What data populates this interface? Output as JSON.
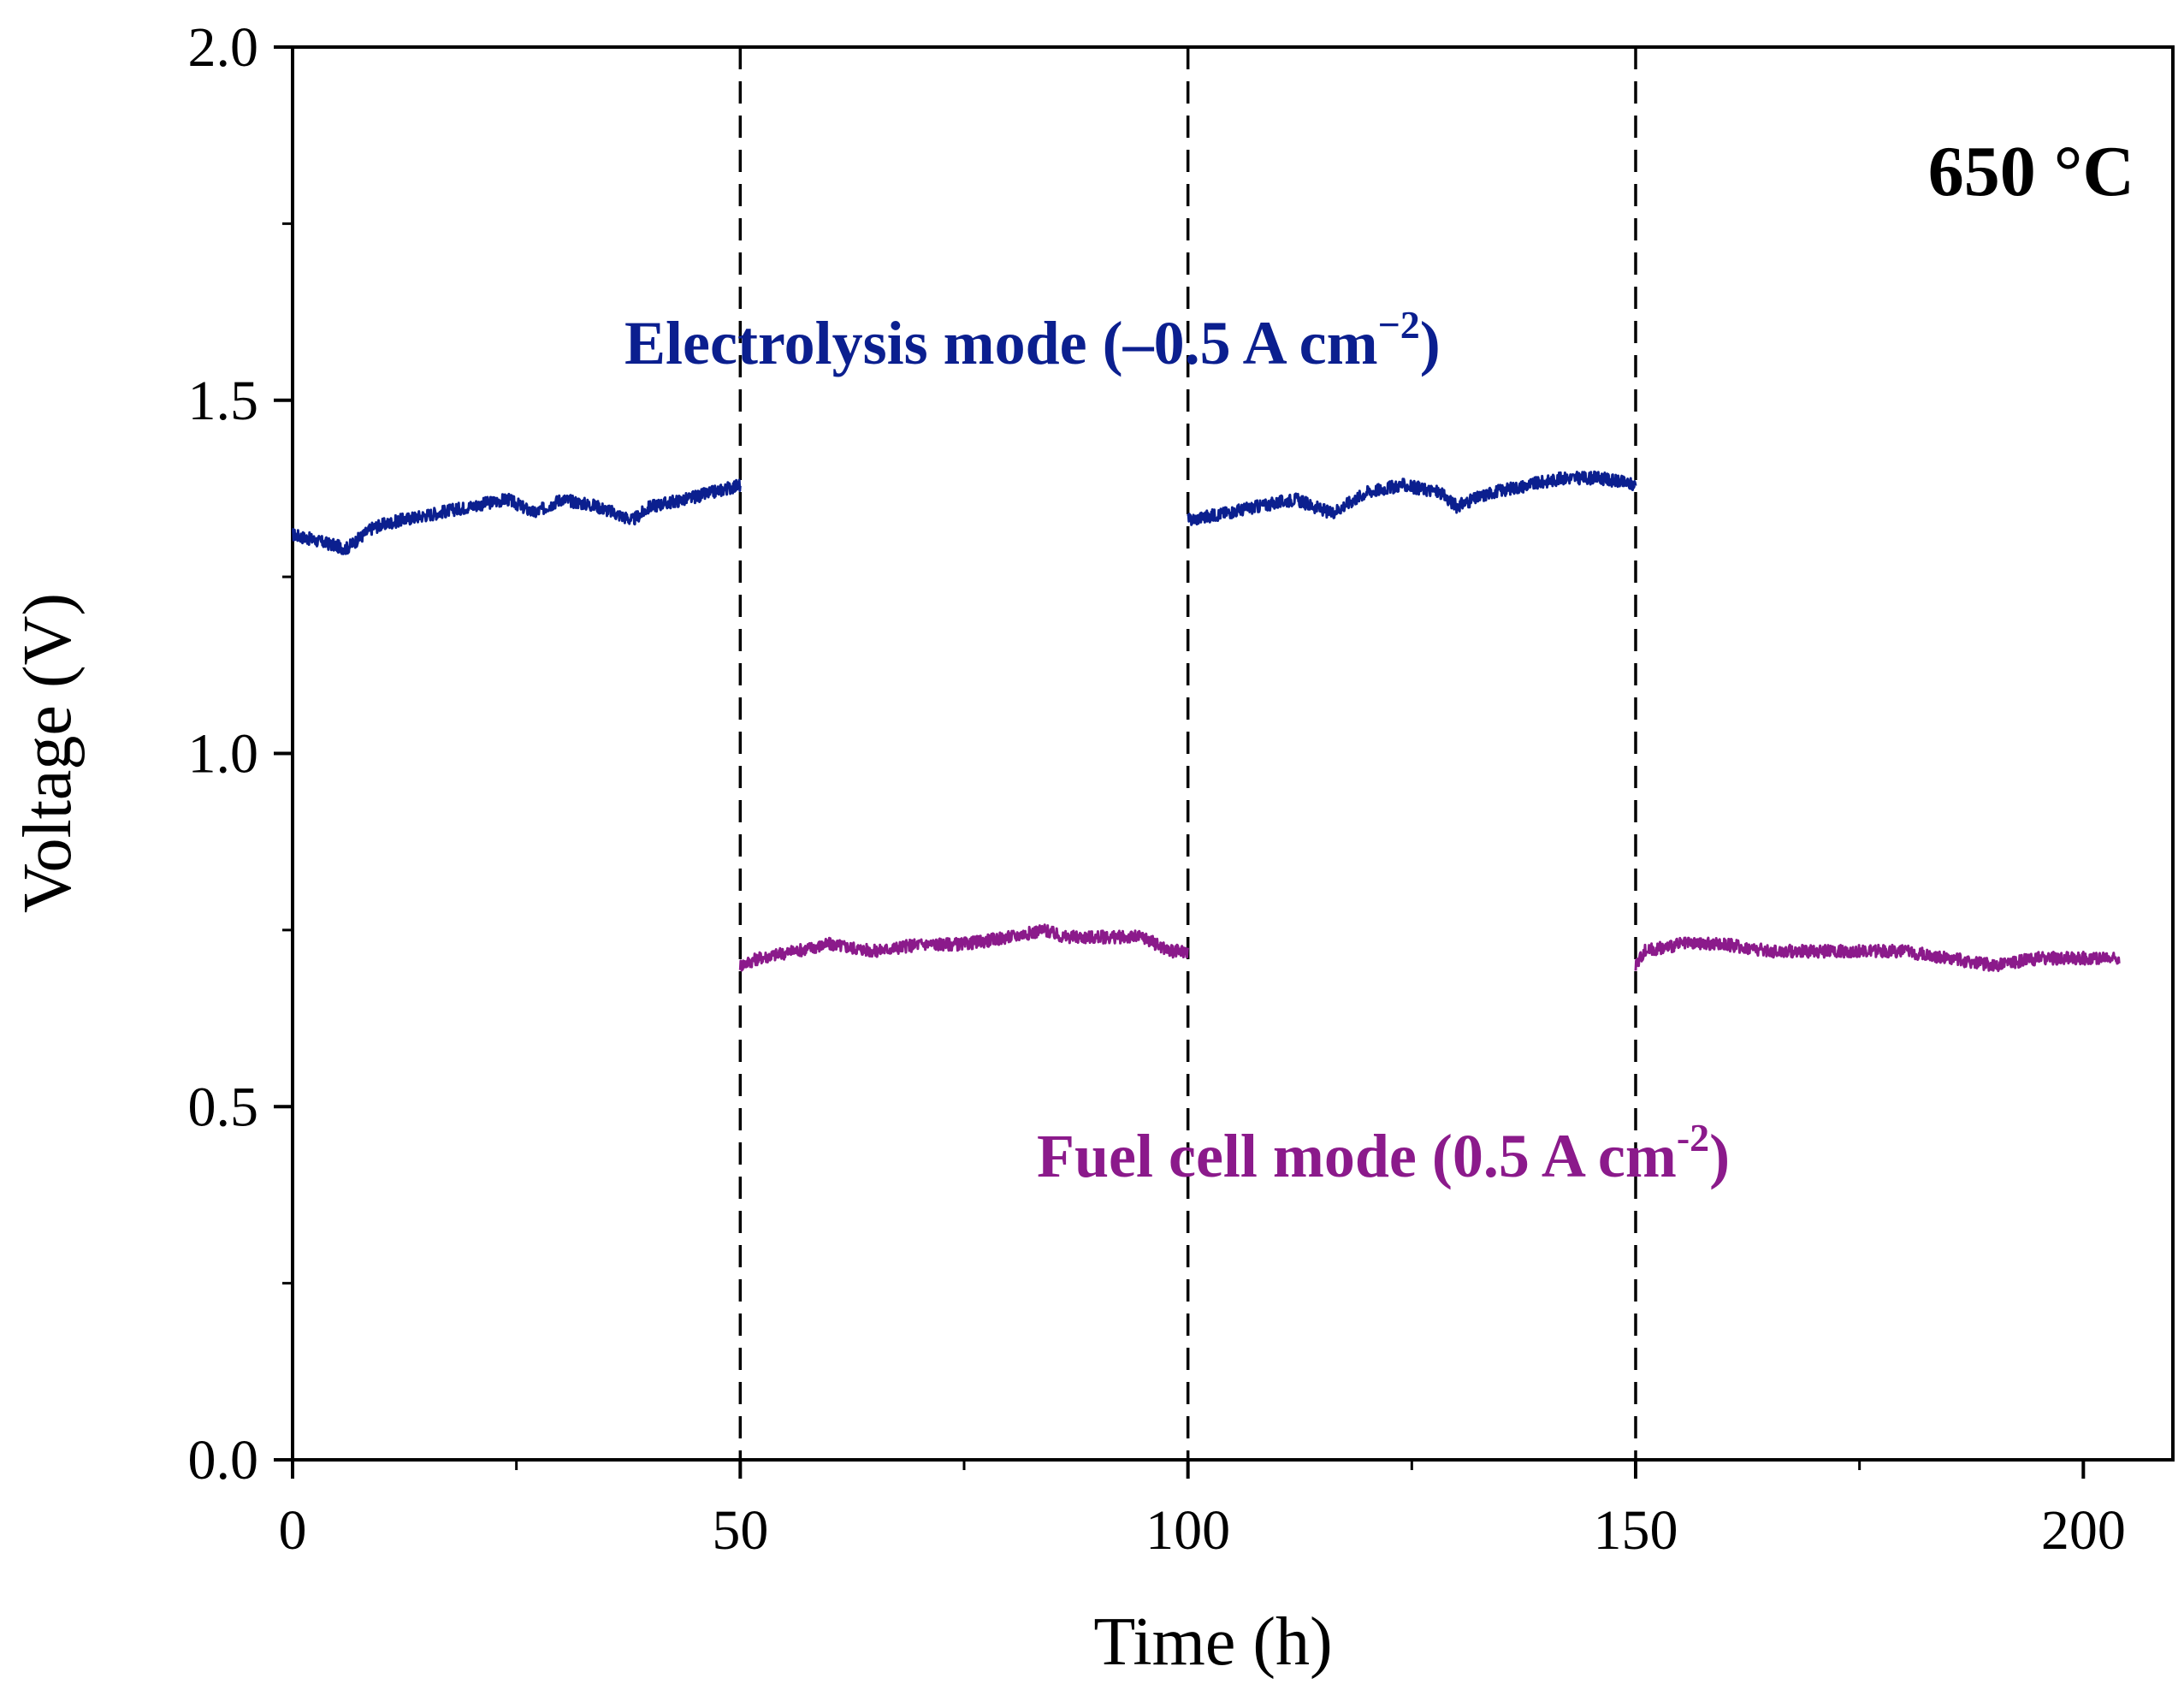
{
  "chart_data": {
    "type": "line",
    "title": "",
    "xlabel": "Time (h)",
    "ylabel": "Voltage (V)",
    "xlim": [
      0,
      210
    ],
    "ylim": [
      0.0,
      2.0
    ],
    "xticks": [
      0,
      50,
      100,
      150,
      200
    ],
    "xtick_labels": [
      "0",
      "50",
      "100",
      "150",
      "200"
    ],
    "yticks": [
      0.0,
      0.5,
      1.0,
      1.5,
      2.0
    ],
    "ytick_labels": [
      "0.0",
      "0.5",
      "1.0",
      "1.5",
      "2.0"
    ],
    "grid": false,
    "mode_switch_times": [
      50,
      100,
      150
    ],
    "series": [
      {
        "name": "Electrolysis mode (-0.5 A cm-2)",
        "color": "#0b1f8f",
        "segments": [
          {
            "x": [
              0,
              3,
              6,
              9,
              12,
              16,
              20,
              24,
              27,
              30,
              34,
              38,
              40,
              44,
              47,
              50
            ],
            "y": [
              1.31,
              1.3,
              1.29,
              1.32,
              1.33,
              1.34,
              1.35,
              1.36,
              1.34,
              1.36,
              1.35,
              1.33,
              1.35,
              1.36,
              1.37,
              1.38
            ]
          },
          {
            "x": [
              100,
              104,
              108,
              112,
              116,
              120,
              124,
              128,
              130,
              134,
              138,
              142,
              146,
              150
            ],
            "y": [
              1.33,
              1.34,
              1.35,
              1.36,
              1.34,
              1.37,
              1.38,
              1.37,
              1.35,
              1.37,
              1.38,
              1.39,
              1.39,
              1.38
            ]
          }
        ]
      },
      {
        "name": "Fuel cell mode (0.5 A cm-2)",
        "color": "#8b1a8b",
        "segments": [
          {
            "x": [
              50,
              52,
              56,
              60,
              65,
              70,
              75,
              80,
              84,
              86,
              90,
              95,
              98,
              100
            ],
            "y": [
              0.7,
              0.71,
              0.72,
              0.73,
              0.72,
              0.73,
              0.73,
              0.74,
              0.75,
              0.74,
              0.74,
              0.74,
              0.72,
              0.72
            ]
          },
          {
            "x": [
              150,
              151,
              155,
              160,
              165,
              170,
              175,
              180,
              185,
              190,
              195,
              200,
              204
            ],
            "y": [
              0.7,
              0.72,
              0.73,
              0.73,
              0.72,
              0.72,
              0.72,
              0.72,
              0.71,
              0.7,
              0.71,
              0.71,
              0.71
            ]
          }
        ]
      }
    ],
    "annotations": {
      "temperature": "650 °C",
      "electrolysis_main": "Electrolysis mode (–0.5 A cm",
      "electrolysis_sup": "−2",
      "electrolysis_tail": ")",
      "fuelcell_main": "Fuel cell mode (0.5 A cm",
      "fuelcell_sup": "-2",
      "fuelcell_tail": ")"
    },
    "colors": {
      "electrolysis": "#0b1f8f",
      "fuelcell": "#8b1a8b",
      "axis": "#000000"
    }
  }
}
